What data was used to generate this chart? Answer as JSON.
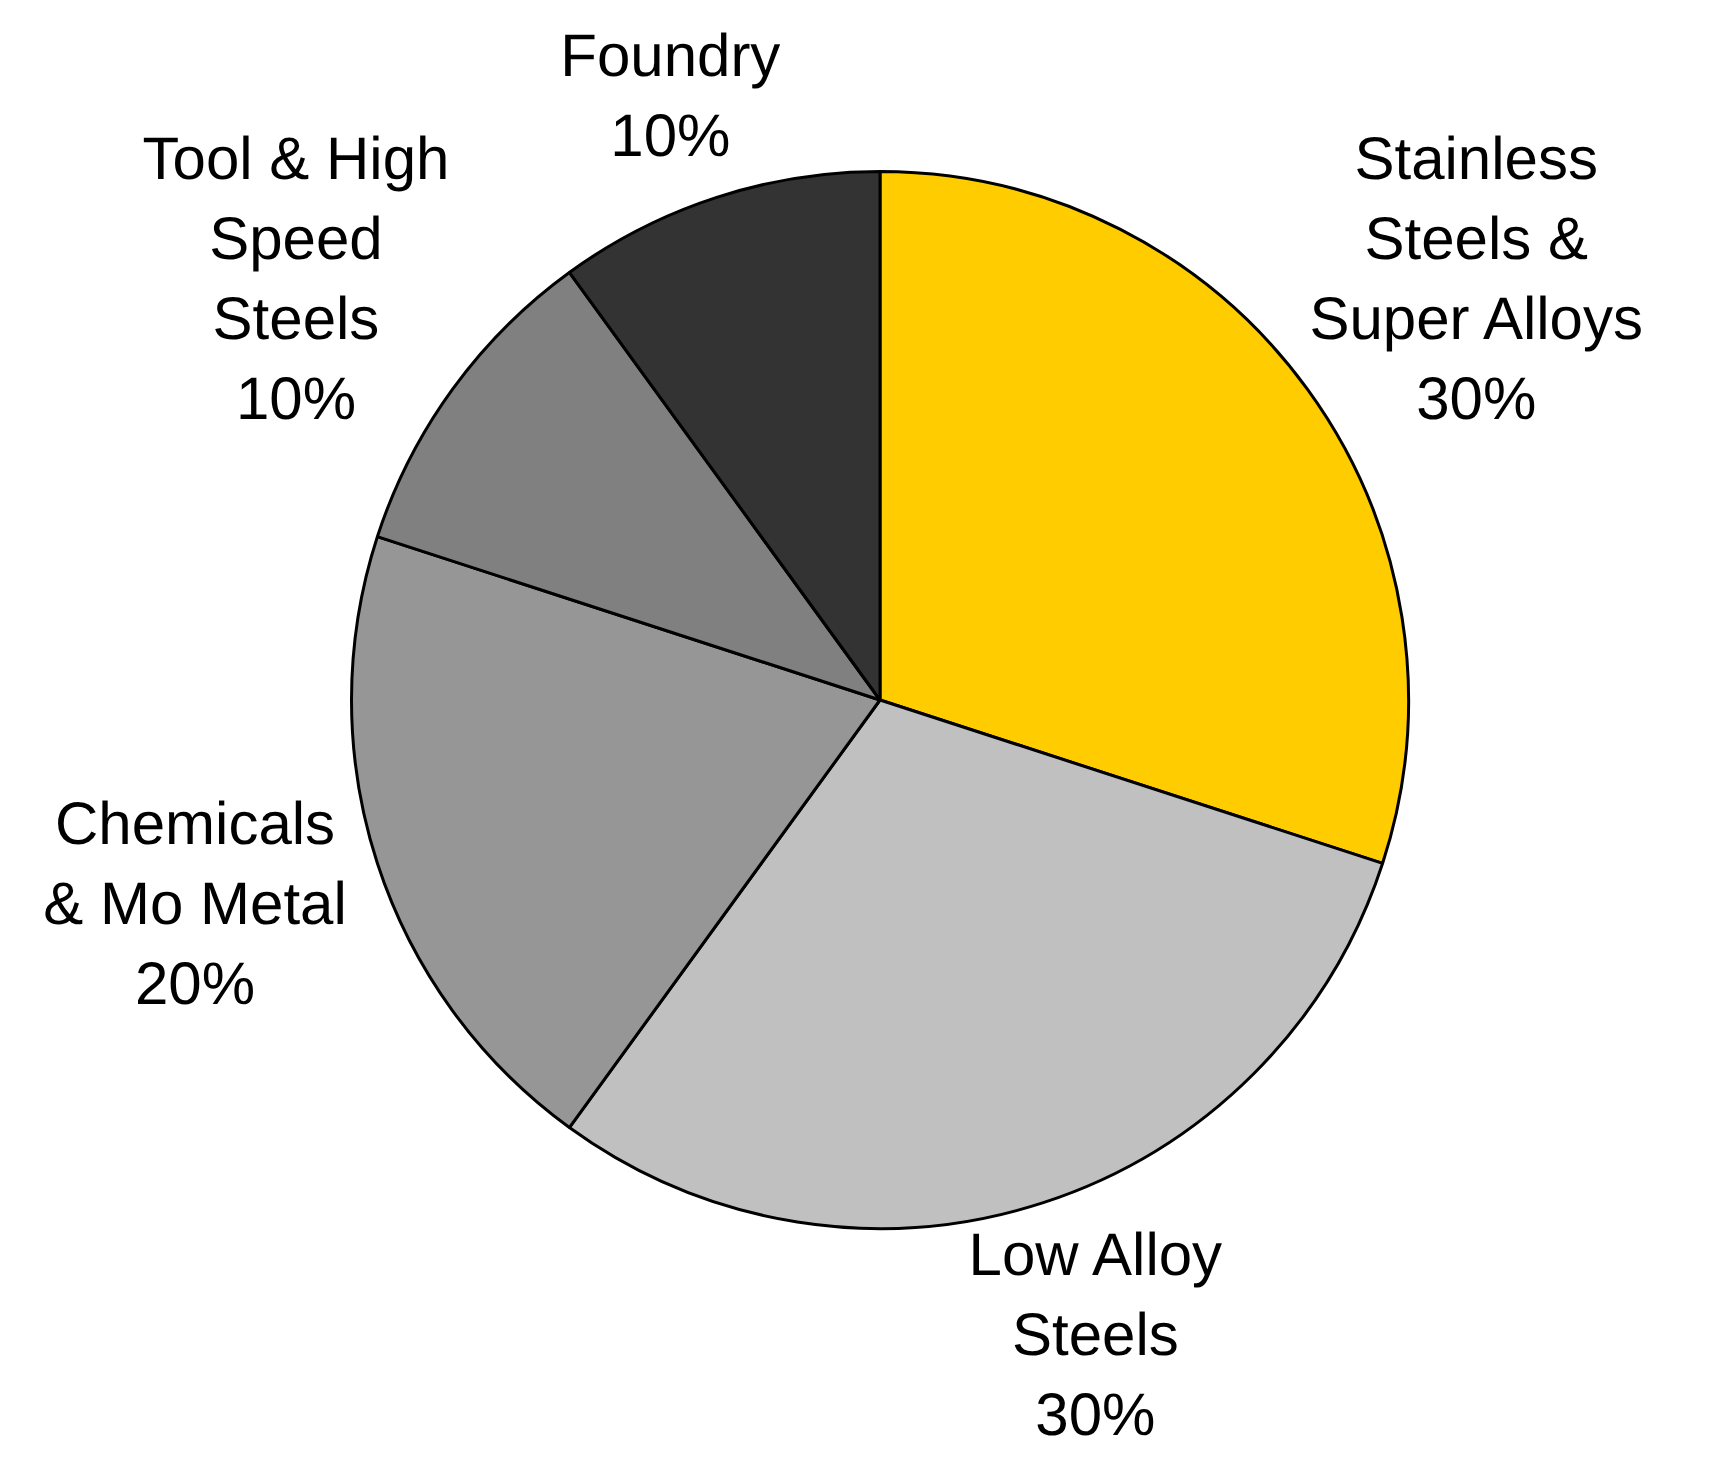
{
  "chart_data": {
    "type": "pie",
    "categories": [
      "Stainless\nSteels &\nSuper Alloys",
      "Low Alloy\nSteels",
      "Chemicals\n& Mo Metal",
      "Tool & High\nSpeed\nSteels",
      "Foundry"
    ],
    "values": [
      30,
      30,
      20,
      10,
      10
    ],
    "value_labels": [
      "30%",
      "30%",
      "20%",
      "10%",
      "10%"
    ],
    "colors": [
      "#ffcc00",
      "#c0c0c0",
      "#969696",
      "#808080",
      "#333333"
    ]
  }
}
